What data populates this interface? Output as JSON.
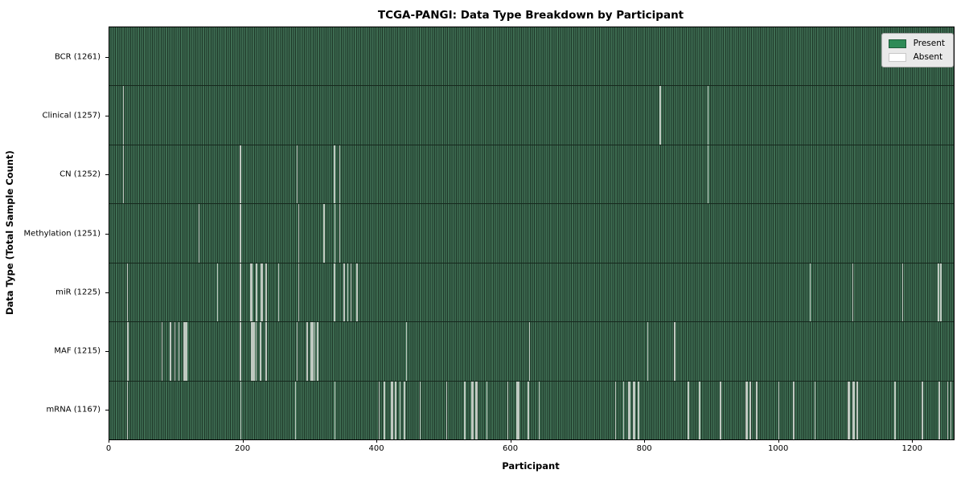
{
  "title": "TCGA-PANGI: Data Type Breakdown by Participant",
  "xlabel": "Participant",
  "ylabel": "Data Type (Total Sample Count)",
  "colors": {
    "present": "#2e8b57",
    "present_swatch_border": "#1f5c3a",
    "absent": "#ffffff",
    "absent_swatch_border": "#c8c8c8",
    "bar_fill_light": "#3e6d52",
    "bar_edge_dark": "#1f3829",
    "absent_stripe": "#c0c9c1",
    "legend_bg": "#e9e9e9",
    "legend_border": "#a6a6a6",
    "axis_text": "#000000"
  },
  "legend": {
    "items": [
      {
        "label": "Present",
        "swatch": "present"
      },
      {
        "label": "Absent",
        "swatch": "absent"
      }
    ]
  },
  "chart_data": {
    "type": "heatmap",
    "title": "TCGA-PANGI: Data Type Breakdown by Participant",
    "xlabel": "Participant",
    "ylabel": "Data Type (Total Sample Count)",
    "legend_entries": [
      "Present",
      "Absent"
    ],
    "legend_position": "upper right",
    "total_participants": 1261,
    "x_range": [
      0,
      1261
    ],
    "x_ticks": [
      0,
      200,
      400,
      600,
      800,
      1000,
      1200
    ],
    "grid": false,
    "rows": [
      {
        "name": "BCR",
        "label": "BCR (1261)",
        "present_count": 1261,
        "absent_count": 0,
        "absent_segments": []
      },
      {
        "name": "Clinical",
        "label": "Clinical (1257)",
        "present_count": 1257,
        "absent_count": 4,
        "absent_segments": [
          [
            20,
            2
          ],
          [
            822,
            1
          ],
          [
            893,
            1
          ]
        ]
      },
      {
        "name": "CN",
        "label": "CN (1252)",
        "present_count": 1252,
        "absent_count": 9,
        "absent_segments": [
          [
            20,
            2
          ],
          [
            195,
            1
          ],
          [
            280,
            1
          ],
          [
            335,
            2
          ],
          [
            343,
            2
          ],
          [
            893,
            1
          ]
        ]
      },
      {
        "name": "Methylation",
        "label": "Methylation (1251)",
        "present_count": 1251,
        "absent_count": 10,
        "absent_segments": [
          [
            133,
            1
          ],
          [
            195,
            1
          ],
          [
            282,
            2
          ],
          [
            320,
            2
          ],
          [
            336,
            2
          ],
          [
            343,
            2
          ]
        ]
      },
      {
        "name": "miR",
        "label": "miR (1225)",
        "present_count": 1225,
        "absent_count": 36,
        "absent_segments": [
          [
            26,
            2
          ],
          [
            161,
            1
          ],
          [
            195,
            1
          ],
          [
            210,
            4
          ],
          [
            218,
            3
          ],
          [
            226,
            3
          ],
          [
            233,
            2
          ],
          [
            252,
            1
          ],
          [
            282,
            1
          ],
          [
            335,
            2
          ],
          [
            349,
            3
          ],
          [
            355,
            2
          ],
          [
            360,
            2
          ],
          [
            369,
            2
          ],
          [
            1046,
            1
          ],
          [
            1110,
            1
          ],
          [
            1184,
            1
          ],
          [
            1237,
            2
          ],
          [
            1241,
            2
          ]
        ]
      },
      {
        "name": "MAF",
        "label": "MAF (1215)",
        "present_count": 1215,
        "absent_count": 46,
        "absent_segments": [
          [
            27,
            2
          ],
          [
            78,
            1
          ],
          [
            90,
            2
          ],
          [
            97,
            1
          ],
          [
            103,
            2
          ],
          [
            110,
            6
          ],
          [
            195,
            2
          ],
          [
            211,
            6
          ],
          [
            218,
            2
          ],
          [
            225,
            2
          ],
          [
            233,
            2
          ],
          [
            280,
            1
          ],
          [
            294,
            3
          ],
          [
            300,
            5
          ],
          [
            306,
            2
          ],
          [
            310,
            2
          ],
          [
            443,
            1
          ],
          [
            627,
            1
          ],
          [
            803,
            1
          ],
          [
            843,
            2
          ]
        ]
      },
      {
        "name": "mRNA",
        "label": "mRNA (1167)",
        "present_count": 1167,
        "absent_count": 94,
        "absent_segments": [
          [
            26,
            2
          ],
          [
            196,
            1
          ],
          [
            277,
            1
          ],
          [
            336,
            1
          ],
          [
            402,
            2
          ],
          [
            410,
            1
          ],
          [
            420,
            4
          ],
          [
            426,
            3
          ],
          [
            433,
            2
          ],
          [
            440,
            1
          ],
          [
            463,
            2
          ],
          [
            503,
            2
          ],
          [
            530,
            2
          ],
          [
            541,
            3
          ],
          [
            547,
            3
          ],
          [
            563,
            2
          ],
          [
            594,
            2
          ],
          [
            608,
            4
          ],
          [
            625,
            2
          ],
          [
            641,
            2
          ],
          [
            755,
            2
          ],
          [
            767,
            2
          ],
          [
            775,
            3
          ],
          [
            782,
            3
          ],
          [
            789,
            2
          ],
          [
            864,
            2
          ],
          [
            880,
            3
          ],
          [
            911,
            3
          ],
          [
            950,
            3
          ],
          [
            956,
            2
          ],
          [
            966,
            2
          ],
          [
            999,
            2
          ],
          [
            1021,
            2
          ],
          [
            1053,
            2
          ],
          [
            1103,
            3
          ],
          [
            1110,
            3
          ],
          [
            1116,
            2
          ],
          [
            1172,
            3
          ],
          [
            1213,
            2
          ],
          [
            1238,
            2
          ],
          [
            1251,
            2
          ],
          [
            1256,
            2
          ]
        ]
      }
    ]
  }
}
